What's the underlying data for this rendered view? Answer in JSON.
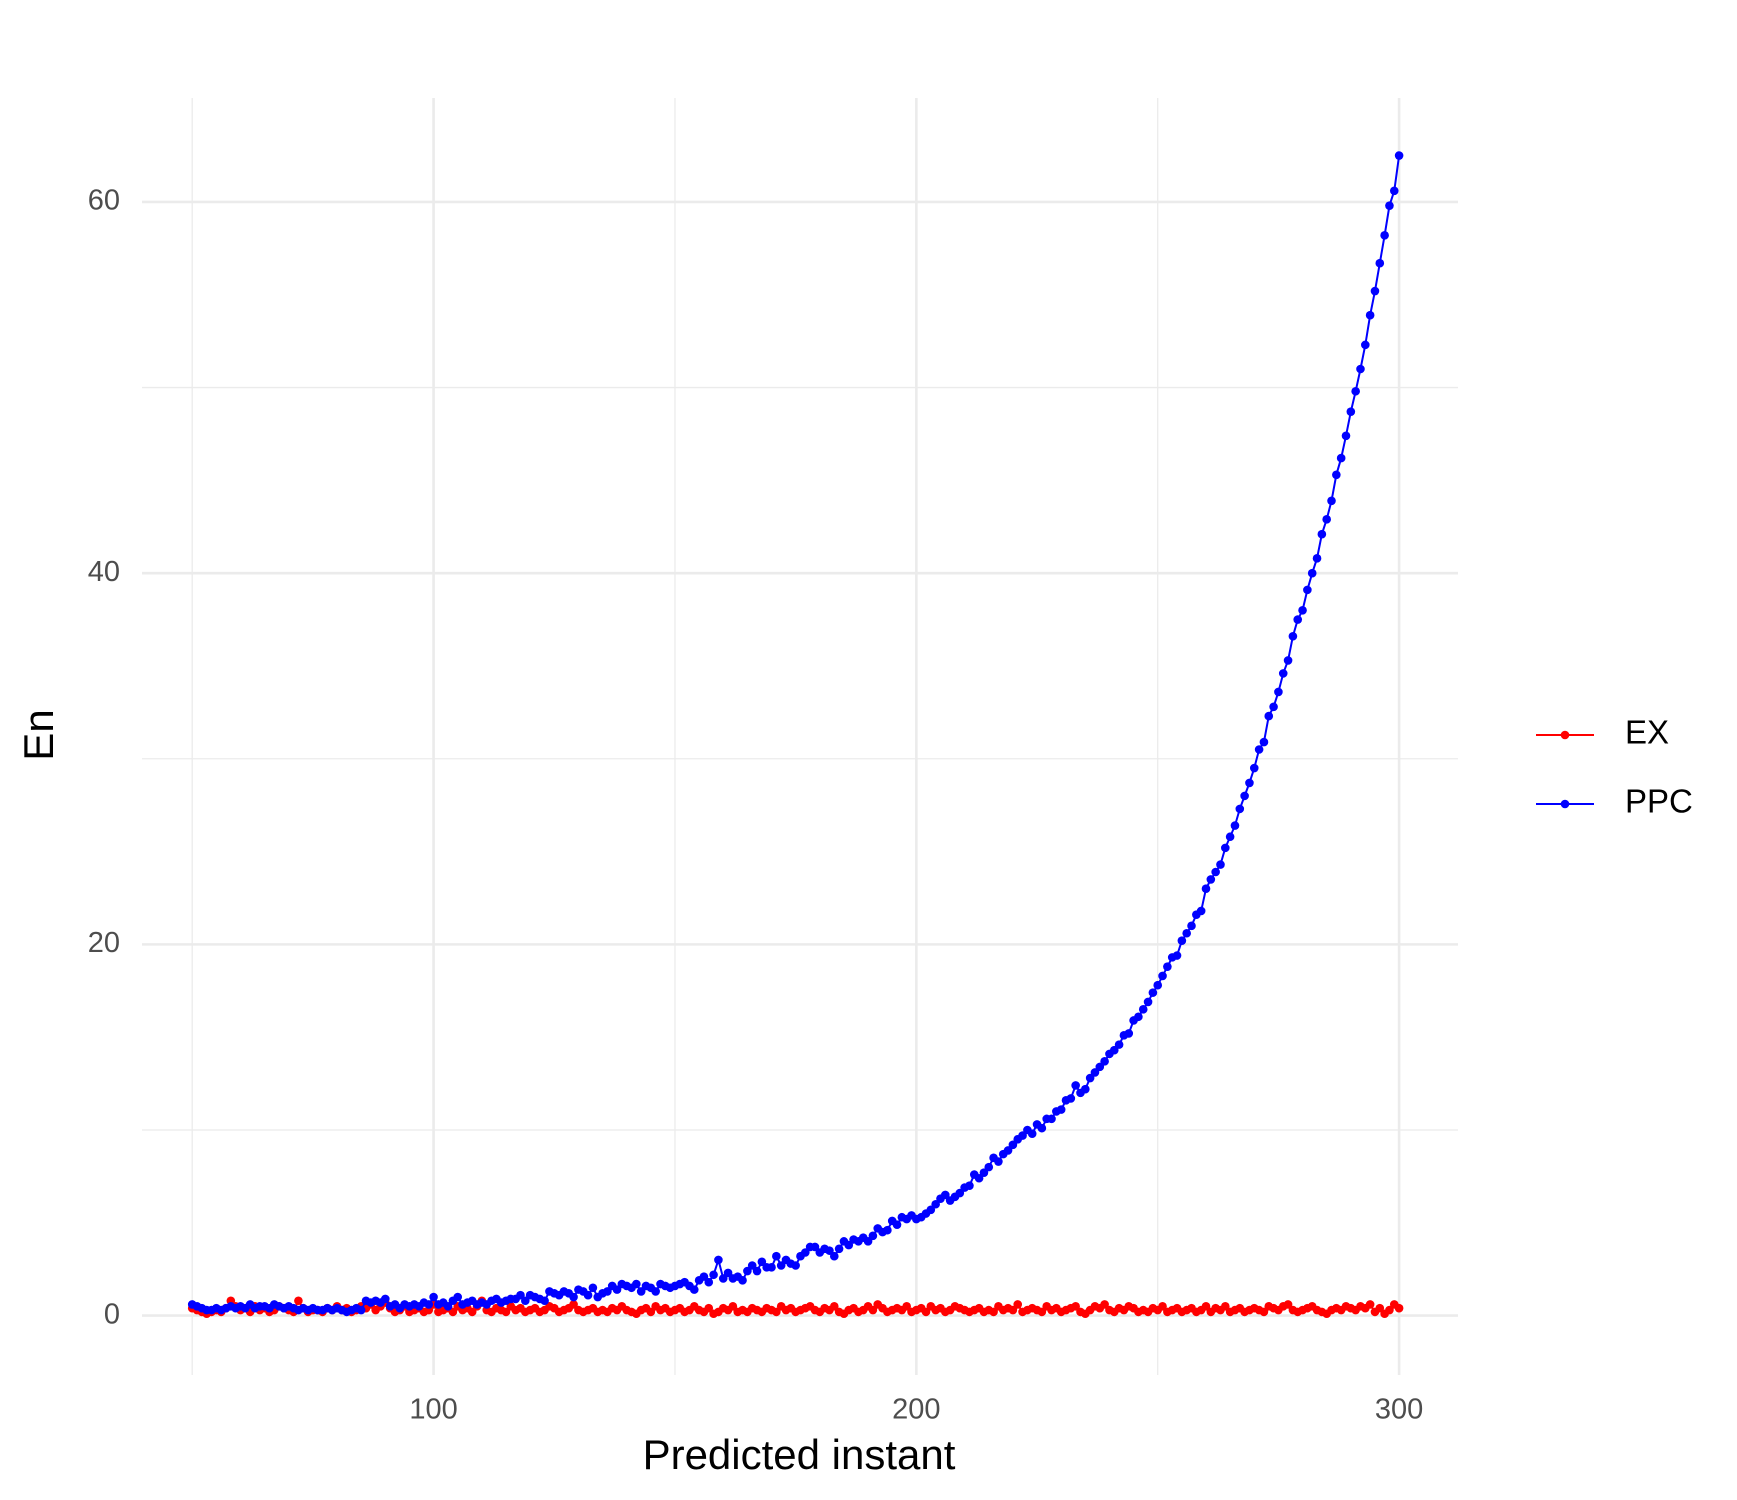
{
  "chart_data": {
    "type": "line",
    "xlabel": "Predicted instant",
    "ylabel": "En",
    "x": [
      50,
      51,
      52,
      53,
      54,
      55,
      56,
      57,
      58,
      59,
      60,
      61,
      62,
      63,
      64,
      65,
      66,
      67,
      68,
      69,
      70,
      71,
      72,
      73,
      74,
      75,
      76,
      77,
      78,
      79,
      80,
      81,
      82,
      83,
      84,
      85,
      86,
      87,
      88,
      89,
      90,
      91,
      92,
      93,
      94,
      95,
      96,
      97,
      98,
      99,
      100,
      101,
      102,
      103,
      104,
      105,
      106,
      107,
      108,
      109,
      110,
      111,
      112,
      113,
      114,
      115,
      116,
      117,
      118,
      119,
      120,
      121,
      122,
      123,
      124,
      125,
      126,
      127,
      128,
      129,
      130,
      131,
      132,
      133,
      134,
      135,
      136,
      137,
      138,
      139,
      140,
      141,
      142,
      143,
      144,
      145,
      146,
      147,
      148,
      149,
      150,
      151,
      152,
      153,
      154,
      155,
      156,
      157,
      158,
      159,
      160,
      161,
      162,
      163,
      164,
      165,
      166,
      167,
      168,
      169,
      170,
      171,
      172,
      173,
      174,
      175,
      176,
      177,
      178,
      179,
      180,
      181,
      182,
      183,
      184,
      185,
      186,
      187,
      188,
      189,
      190,
      191,
      192,
      193,
      194,
      195,
      196,
      197,
      198,
      199,
      200,
      201,
      202,
      203,
      204,
      205,
      206,
      207,
      208,
      209,
      210,
      211,
      212,
      213,
      214,
      215,
      216,
      217,
      218,
      219,
      220,
      221,
      222,
      223,
      224,
      225,
      226,
      227,
      228,
      229,
      230,
      231,
      232,
      233,
      234,
      235,
      236,
      237,
      238,
      239,
      240,
      241,
      242,
      243,
      244,
      245,
      246,
      247,
      248,
      249,
      250,
      251,
      252,
      253,
      254,
      255,
      256,
      257,
      258,
      259,
      260,
      261,
      262,
      263,
      264,
      265,
      266,
      267,
      268,
      269,
      270,
      271,
      272,
      273,
      274,
      275,
      276,
      277,
      278,
      279,
      280,
      281,
      282,
      283,
      284,
      285,
      286,
      287,
      288,
      289,
      290,
      291,
      292,
      293,
      294,
      295,
      296,
      297,
      298,
      299,
      300
    ],
    "series": [
      {
        "name": "EX",
        "color": "#ff0000",
        "values": [
          0.4,
          0.3,
          0.2,
          0.1,
          0.2,
          0.3,
          0.2,
          0.4,
          0.8,
          0.5,
          0.3,
          0.4,
          0.2,
          0.5,
          0.3,
          0.4,
          0.2,
          0.3,
          0.5,
          0.4,
          0.3,
          0.2,
          0.8,
          0.4,
          0.2,
          0.3,
          0.3,
          0.2,
          0.4,
          0.3,
          0.5,
          0.3,
          0.4,
          0.2,
          0.3,
          0.5,
          0.4,
          0.6,
          0.3,
          0.5,
          0.7,
          0.4,
          0.2,
          0.3,
          0.5,
          0.2,
          0.3,
          0.4,
          0.2,
          0.3,
          0.6,
          0.2,
          0.3,
          0.4,
          0.2,
          0.5,
          0.3,
          0.4,
          0.2,
          0.5,
          0.8,
          0.3,
          0.2,
          0.4,
          0.3,
          0.2,
          0.5,
          0.3,
          0.4,
          0.2,
          0.3,
          0.4,
          0.2,
          0.3,
          0.5,
          0.4,
          0.2,
          0.3,
          0.4,
          0.6,
          0.3,
          0.2,
          0.3,
          0.4,
          0.2,
          0.3,
          0.2,
          0.4,
          0.3,
          0.5,
          0.3,
          0.2,
          0.1,
          0.3,
          0.4,
          0.2,
          0.5,
          0.3,
          0.4,
          0.2,
          0.3,
          0.4,
          0.2,
          0.3,
          0.5,
          0.3,
          0.2,
          0.4,
          0.1,
          0.2,
          0.4,
          0.3,
          0.5,
          0.2,
          0.3,
          0.2,
          0.4,
          0.3,
          0.2,
          0.4,
          0.3,
          0.2,
          0.5,
          0.3,
          0.4,
          0.2,
          0.3,
          0.4,
          0.5,
          0.3,
          0.2,
          0.4,
          0.3,
          0.5,
          0.2,
          0.1,
          0.3,
          0.4,
          0.2,
          0.3,
          0.5,
          0.3,
          0.6,
          0.4,
          0.2,
          0.3,
          0.4,
          0.3,
          0.5,
          0.2,
          0.3,
          0.4,
          0.2,
          0.5,
          0.3,
          0.4,
          0.2,
          0.3,
          0.5,
          0.4,
          0.3,
          0.2,
          0.3,
          0.4,
          0.2,
          0.3,
          0.2,
          0.5,
          0.3,
          0.4,
          0.3,
          0.6,
          0.2,
          0.3,
          0.4,
          0.3,
          0.2,
          0.5,
          0.3,
          0.4,
          0.2,
          0.3,
          0.4,
          0.5,
          0.2,
          0.1,
          0.3,
          0.5,
          0.4,
          0.6,
          0.3,
          0.2,
          0.4,
          0.3,
          0.5,
          0.4,
          0.2,
          0.3,
          0.2,
          0.4,
          0.3,
          0.5,
          0.2,
          0.3,
          0.4,
          0.2,
          0.3,
          0.4,
          0.2,
          0.3,
          0.5,
          0.2,
          0.4,
          0.3,
          0.5,
          0.2,
          0.3,
          0.4,
          0.2,
          0.3,
          0.4,
          0.3,
          0.2,
          0.5,
          0.4,
          0.3,
          0.5,
          0.6,
          0.3,
          0.2,
          0.3,
          0.4,
          0.5,
          0.3,
          0.2,
          0.1,
          0.3,
          0.4,
          0.3,
          0.5,
          0.4,
          0.3,
          0.5,
          0.4,
          0.6,
          0.2,
          0.4,
          0.1,
          0.3,
          0.6,
          0.4
        ]
      },
      {
        "name": "PPC",
        "color": "#0000ff",
        "values": [
          0.6,
          0.5,
          0.4,
          0.3,
          0.3,
          0.4,
          0.3,
          0.4,
          0.5,
          0.4,
          0.5,
          0.4,
          0.6,
          0.4,
          0.5,
          0.5,
          0.4,
          0.6,
          0.5,
          0.4,
          0.5,
          0.4,
          0.3,
          0.4,
          0.3,
          0.4,
          0.3,
          0.3,
          0.4,
          0.3,
          0.4,
          0.3,
          0.2,
          0.3,
          0.4,
          0.3,
          0.8,
          0.7,
          0.8,
          0.7,
          0.9,
          0.5,
          0.6,
          0.4,
          0.6,
          0.5,
          0.6,
          0.5,
          0.7,
          0.6,
          1.0,
          0.6,
          0.7,
          0.5,
          0.8,
          1.0,
          0.6,
          0.7,
          0.8,
          0.6,
          0.7,
          0.6,
          0.8,
          0.9,
          0.7,
          0.8,
          0.9,
          0.9,
          1.1,
          0.8,
          1.1,
          1.0,
          0.9,
          0.8,
          1.3,
          1.2,
          1.1,
          1.3,
          1.2,
          1.0,
          1.4,
          1.3,
          1.1,
          1.5,
          1.0,
          1.2,
          1.3,
          1.6,
          1.4,
          1.7,
          1.6,
          1.5,
          1.7,
          1.3,
          1.6,
          1.5,
          1.3,
          1.7,
          1.6,
          1.5,
          1.6,
          1.7,
          1.8,
          1.6,
          1.4,
          1.9,
          2.1,
          1.8,
          2.2,
          3.0,
          2.0,
          2.3,
          2.0,
          2.1,
          1.9,
          2.4,
          2.7,
          2.4,
          2.9,
          2.6,
          2.6,
          3.2,
          2.7,
          3.0,
          2.8,
          2.7,
          3.2,
          3.4,
          3.7,
          3.7,
          3.4,
          3.6,
          3.5,
          3.2,
          3.6,
          4.0,
          3.8,
          4.1,
          4.0,
          4.2,
          4.0,
          4.3,
          4.7,
          4.5,
          4.6,
          5.1,
          4.9,
          5.3,
          5.2,
          5.4,
          5.2,
          5.3,
          5.5,
          5.7,
          6.0,
          6.3,
          6.5,
          6.2,
          6.4,
          6.6,
          6.9,
          7.0,
          7.6,
          7.4,
          7.7,
          8.0,
          8.5,
          8.3,
          8.7,
          8.9,
          9.2,
          9.5,
          9.7,
          10.0,
          9.8,
          10.3,
          10.1,
          10.6,
          10.6,
          11.0,
          11.1,
          11.6,
          11.7,
          12.4,
          12.0,
          12.2,
          12.8,
          13.1,
          13.4,
          13.7,
          14.1,
          14.3,
          14.6,
          15.1,
          15.2,
          15.9,
          16.1,
          16.5,
          16.9,
          17.4,
          17.8,
          18.3,
          18.8,
          19.3,
          19.4,
          20.2,
          20.6,
          21.0,
          21.6,
          21.8,
          23.0,
          23.5,
          23.9,
          24.3,
          25.2,
          25.8,
          26.4,
          27.3,
          28.0,
          28.7,
          29.5,
          30.5,
          30.9,
          32.3,
          32.8,
          33.6,
          34.6,
          35.3,
          36.6,
          37.5,
          38.0,
          39.1,
          40.0,
          40.8,
          42.1,
          42.9,
          43.9,
          45.3,
          46.2,
          47.4,
          48.7,
          49.8,
          51.0,
          52.3,
          53.9,
          55.2,
          56.7,
          58.2,
          59.8,
          60.6,
          62.5
        ]
      }
    ],
    "xlim": [
      39.6,
      312.2
    ],
    "ylim": [
      -3.2,
      65.6
    ],
    "xticks": [
      100,
      200,
      300
    ],
    "yticks": [
      0,
      20,
      40,
      60
    ],
    "xminor": [
      50,
      150,
      250
    ],
    "yminor": [
      10,
      30,
      50
    ],
    "grid": true,
    "legend": "right"
  }
}
